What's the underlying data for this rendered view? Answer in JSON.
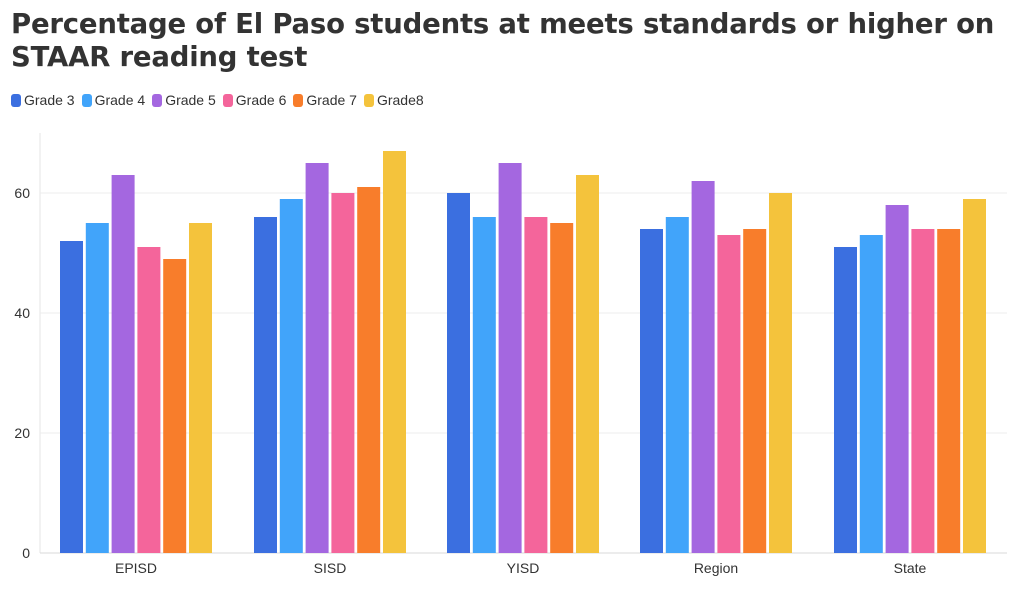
{
  "chart_data": {
    "type": "bar",
    "title": "Percentage of El Paso students at meets standards or higher on STAAR reading test",
    "categories": [
      "EPISD",
      "SISD",
      "YISD",
      "Region",
      "State"
    ],
    "series": [
      {
        "name": "Grade 3",
        "color": "#3b6fe0",
        "values": [
          52,
          56,
          60,
          54,
          51
        ]
      },
      {
        "name": "Grade 4",
        "color": "#41a4fa",
        "values": [
          55,
          59,
          56,
          56,
          53
        ]
      },
      {
        "name": "Grade 5",
        "color": "#a467e0",
        "values": [
          63,
          65,
          65,
          62,
          58
        ]
      },
      {
        "name": "Grade 6",
        "color": "#f4659b",
        "values": [
          51,
          60,
          56,
          53,
          54
        ]
      },
      {
        "name": "Grade 7",
        "color": "#f87d2b",
        "values": [
          49,
          61,
          55,
          54,
          54
        ]
      },
      {
        "name": "Grade8",
        "color": "#f4c33c",
        "values": [
          55,
          67,
          63,
          60,
          59
        ]
      }
    ],
    "yticks": [
      0,
      20,
      40,
      60
    ],
    "ylim": [
      0,
      70
    ],
    "xlabel": "",
    "ylabel": "",
    "grid": true,
    "legend_position": "top-left"
  }
}
